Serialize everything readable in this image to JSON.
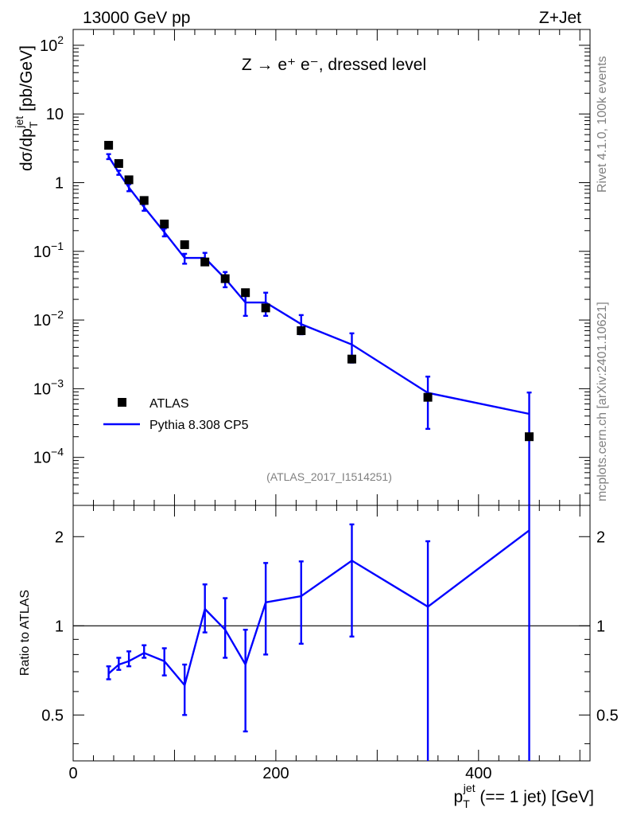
{
  "header": {
    "left": "13000 GeV pp",
    "right": "Z+Jet"
  },
  "side_texts": {
    "rivet": "Rivet 4.1.0,  100k events",
    "mcplots": "mcplots.cern.ch [arXiv:2401.10621]"
  },
  "chart_data": [
    {
      "type": "scatter",
      "title": "Z → e⁺ e⁻, dressed level",
      "analysis_id": "(ATLAS_2017_I1514251)",
      "xlabel": "p_T^jet (== 1 jet) [GeV]",
      "ylabel": "dσ/dp_T^jet [pb/GeV]",
      "ylabel_parts": {
        "main": "dσ/dp",
        "sub": "T",
        "sup": "jet",
        "unit": " [pb/GeV]"
      },
      "xlim": [
        0,
        510
      ],
      "ylim": [
        2e-05,
        170
      ],
      "yscale": "log",
      "ytick_labels": [
        {
          "value": 0.0001,
          "mant": "10",
          "exp": "−4"
        },
        {
          "value": 0.001,
          "mant": "10",
          "exp": "−3"
        },
        {
          "value": 0.01,
          "mant": "10",
          "exp": "−2"
        },
        {
          "value": 0.1,
          "mant": "10",
          "exp": "−1"
        },
        {
          "value": 1,
          "mant": "1",
          "exp": ""
        },
        {
          "value": 10,
          "mant": "10",
          "exp": ""
        },
        {
          "value": 100,
          "mant": "10",
          "exp": "2"
        }
      ],
      "legend_position": "lower-left",
      "series": [
        {
          "name": "ATLAS",
          "marker": "square",
          "color": "#000000",
          "x": [
            35,
            45,
            55,
            70,
            90,
            110,
            130,
            150,
            170,
            190,
            225,
            275,
            350,
            450
          ],
          "y": [
            3.5,
            1.9,
            1.1,
            0.55,
            0.25,
            0.125,
            0.07,
            0.04,
            0.025,
            0.015,
            0.007,
            0.0027,
            0.00075,
            0.0002
          ]
        },
        {
          "name": "Pythia 8.308 CP5",
          "marker": "line",
          "color": "#0000ff",
          "x": [
            35,
            45,
            55,
            70,
            90,
            110,
            130,
            150,
            170,
            190,
            225,
            275,
            350,
            450
          ],
          "y": [
            2.4,
            1.4,
            0.85,
            0.44,
            0.19,
            0.08,
            0.08,
            0.04,
            0.018,
            0.018,
            0.0087,
            0.0044,
            0.00087,
            0.00043
          ],
          "err_low": [
            2.2,
            1.3,
            0.75,
            0.39,
            0.165,
            0.066,
            0.065,
            0.03,
            0.0115,
            0.0115,
            0.0062,
            0.0024,
            0.00026,
            2e-05
          ],
          "err_high": [
            2.6,
            1.5,
            0.95,
            0.49,
            0.215,
            0.092,
            0.095,
            0.05,
            0.025,
            0.025,
            0.0118,
            0.0064,
            0.0015,
            0.00088
          ]
        }
      ]
    },
    {
      "type": "line",
      "ylabel": "Ratio to ATLAS",
      "xlim": [
        0,
        510
      ],
      "ylim": [
        0.35,
        2.55
      ],
      "yscale": "log",
      "yticks": [
        0.5,
        1,
        2
      ],
      "ytick_labels": [
        "0.5",
        "1",
        "2"
      ],
      "xticks": [
        0,
        200,
        400
      ],
      "xtick_labels": [
        "0",
        "200",
        "400"
      ],
      "reference_line": 1,
      "series": [
        {
          "name": "Pythia 8.308 CP5",
          "color": "#0000ff",
          "x": [
            35,
            45,
            55,
            70,
            90,
            110,
            130,
            150,
            170,
            190,
            225,
            275,
            350,
            450
          ],
          "y": [
            0.69,
            0.74,
            0.76,
            0.81,
            0.76,
            0.63,
            1.14,
            0.97,
            0.74,
            1.2,
            1.26,
            1.66,
            1.16,
            2.1
          ],
          "err_low": [
            0.66,
            0.71,
            0.73,
            0.78,
            0.68,
            0.5,
            0.95,
            0.78,
            0.44,
            0.8,
            0.87,
            0.92,
            0.35,
            0.35
          ],
          "err_high": [
            0.73,
            0.78,
            0.82,
            0.86,
            0.84,
            0.74,
            1.38,
            1.24,
            0.97,
            1.63,
            1.65,
            2.2,
            1.93,
            2.55
          ]
        }
      ]
    }
  ]
}
